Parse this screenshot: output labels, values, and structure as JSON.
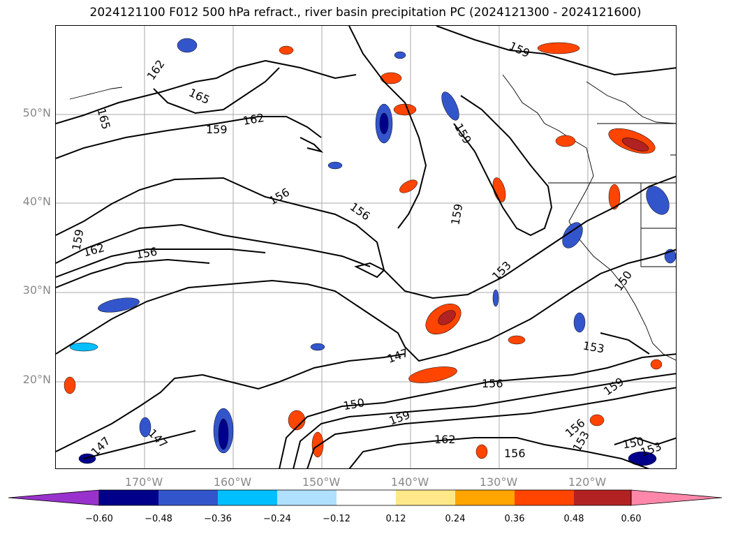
{
  "title": "2024121100 F012 500 hPa refract., river basin precipitation PC (2024121300 - 2024121600)",
  "axes": {
    "lat_labels": [
      "50°N",
      "40°N",
      "30°N",
      "20°N"
    ],
    "lon_labels": [
      "170°W",
      "160°W",
      "150°W",
      "140°W",
      "130°W",
      "120°W"
    ]
  },
  "contour_labels": [
    "162",
    "165",
    "165",
    "159",
    "162",
    "159",
    "156",
    "156",
    "159",
    "159",
    "162",
    "156",
    "159",
    "153",
    "150",
    "147",
    "150",
    "159",
    "156",
    "162",
    "156",
    "147",
    "147",
    "153",
    "159",
    "156",
    "153",
    "150",
    "153"
  ],
  "colorbar": {
    "ticks": [
      "−0.60",
      "−0.48",
      "−0.36",
      "−0.24",
      "−0.12",
      "0.12",
      "0.24",
      "0.36",
      "0.48",
      "0.60"
    ],
    "colors": {
      "under": "#9932cc",
      "bins": [
        "#00008b",
        "#3355cc",
        "#00bfff",
        "#b0e0ff",
        "#ffffff",
        "#ffe88a",
        "#ffa500",
        "#ff4500",
        "#b22222"
      ],
      "over": "#ff88aa"
    }
  }
}
